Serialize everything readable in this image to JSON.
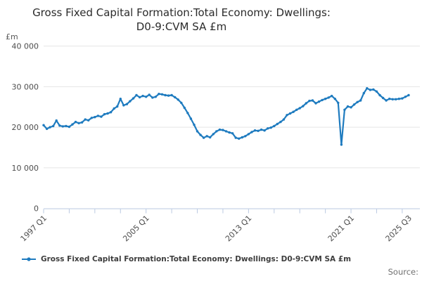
{
  "page": {
    "title_line1": "Gross Fixed Capital Formation:Total Economy: Dwellings:",
    "title_line2": "D0-9:CVM SA £m",
    "unit_label": "£m",
    "source_label": "Source:"
  },
  "legend": {
    "label": "Gross Fixed Capital Formation:Total Economy: Dwellings: D0-9:CVM SA £m",
    "marker_color": "#1e7bbf"
  },
  "chart_data": {
    "type": "line",
    "title": "Gross Fixed Capital Formation:Total Economy: Dwellings: D0-9:CVM SA £m",
    "ylabel": "£m",
    "ylim": [
      0,
      40000
    ],
    "y_tick_values": [
      0,
      10000,
      20000,
      30000,
      40000
    ],
    "y_tick_labels": [
      "0",
      "10 000",
      "20 000",
      "30 000",
      "40 000"
    ],
    "x_first_quarter": "1997 Q1",
    "x_last_quarter": "2025 Q3",
    "frequency": "quarterly",
    "minor_tick_every_quarters": 8,
    "x_labeled_ticks": [
      {
        "q": 0,
        "label": "1997 Q1"
      },
      {
        "q": 32,
        "label": "2005 Q1"
      },
      {
        "q": 64,
        "label": "2013 Q1"
      },
      {
        "q": 96,
        "label": "2021 Q1"
      },
      {
        "q": 114,
        "label": "2025 Q3"
      }
    ],
    "grid": "horizontal",
    "legend_position": "bottom-left",
    "line_color": "#1e7bbf",
    "grid_color": "#e5e5e5",
    "axis_color": "#bac9e1",
    "series": [
      {
        "name": "Gross Fixed Capital Formation:Total Economy: Dwellings: D0-9:CVM SA £m",
        "start": "1997 Q1",
        "values": [
          20500,
          19600,
          20000,
          20300,
          21650,
          20400,
          20200,
          20300,
          20100,
          20700,
          21300,
          21000,
          21200,
          21900,
          21700,
          22300,
          22500,
          22800,
          22600,
          23200,
          23400,
          23700,
          24600,
          25100,
          27000,
          25400,
          25700,
          26400,
          27100,
          27900,
          27400,
          27700,
          27500,
          28000,
          27300,
          27500,
          28200,
          28100,
          27900,
          27800,
          27900,
          27400,
          26800,
          26000,
          24800,
          23500,
          22100,
          20600,
          19000,
          18100,
          17400,
          17800,
          17500,
          18300,
          19000,
          19400,
          19300,
          19000,
          18700,
          18500,
          17400,
          17200,
          17500,
          17800,
          18300,
          18800,
          19200,
          19100,
          19400,
          19200,
          19700,
          19900,
          20300,
          20800,
          21300,
          21900,
          23000,
          23400,
          23800,
          24300,
          24700,
          25200,
          25900,
          26500,
          26600,
          25900,
          26300,
          26700,
          27000,
          27300,
          27700,
          27000,
          26000,
          15700,
          24300,
          25100,
          24900,
          25600,
          26200,
          26600,
          28400,
          29600,
          29200,
          29300,
          28800,
          27900,
          27200,
          26600,
          27000,
          26900,
          26900,
          27000,
          27100,
          27500,
          27900
        ]
      }
    ]
  }
}
